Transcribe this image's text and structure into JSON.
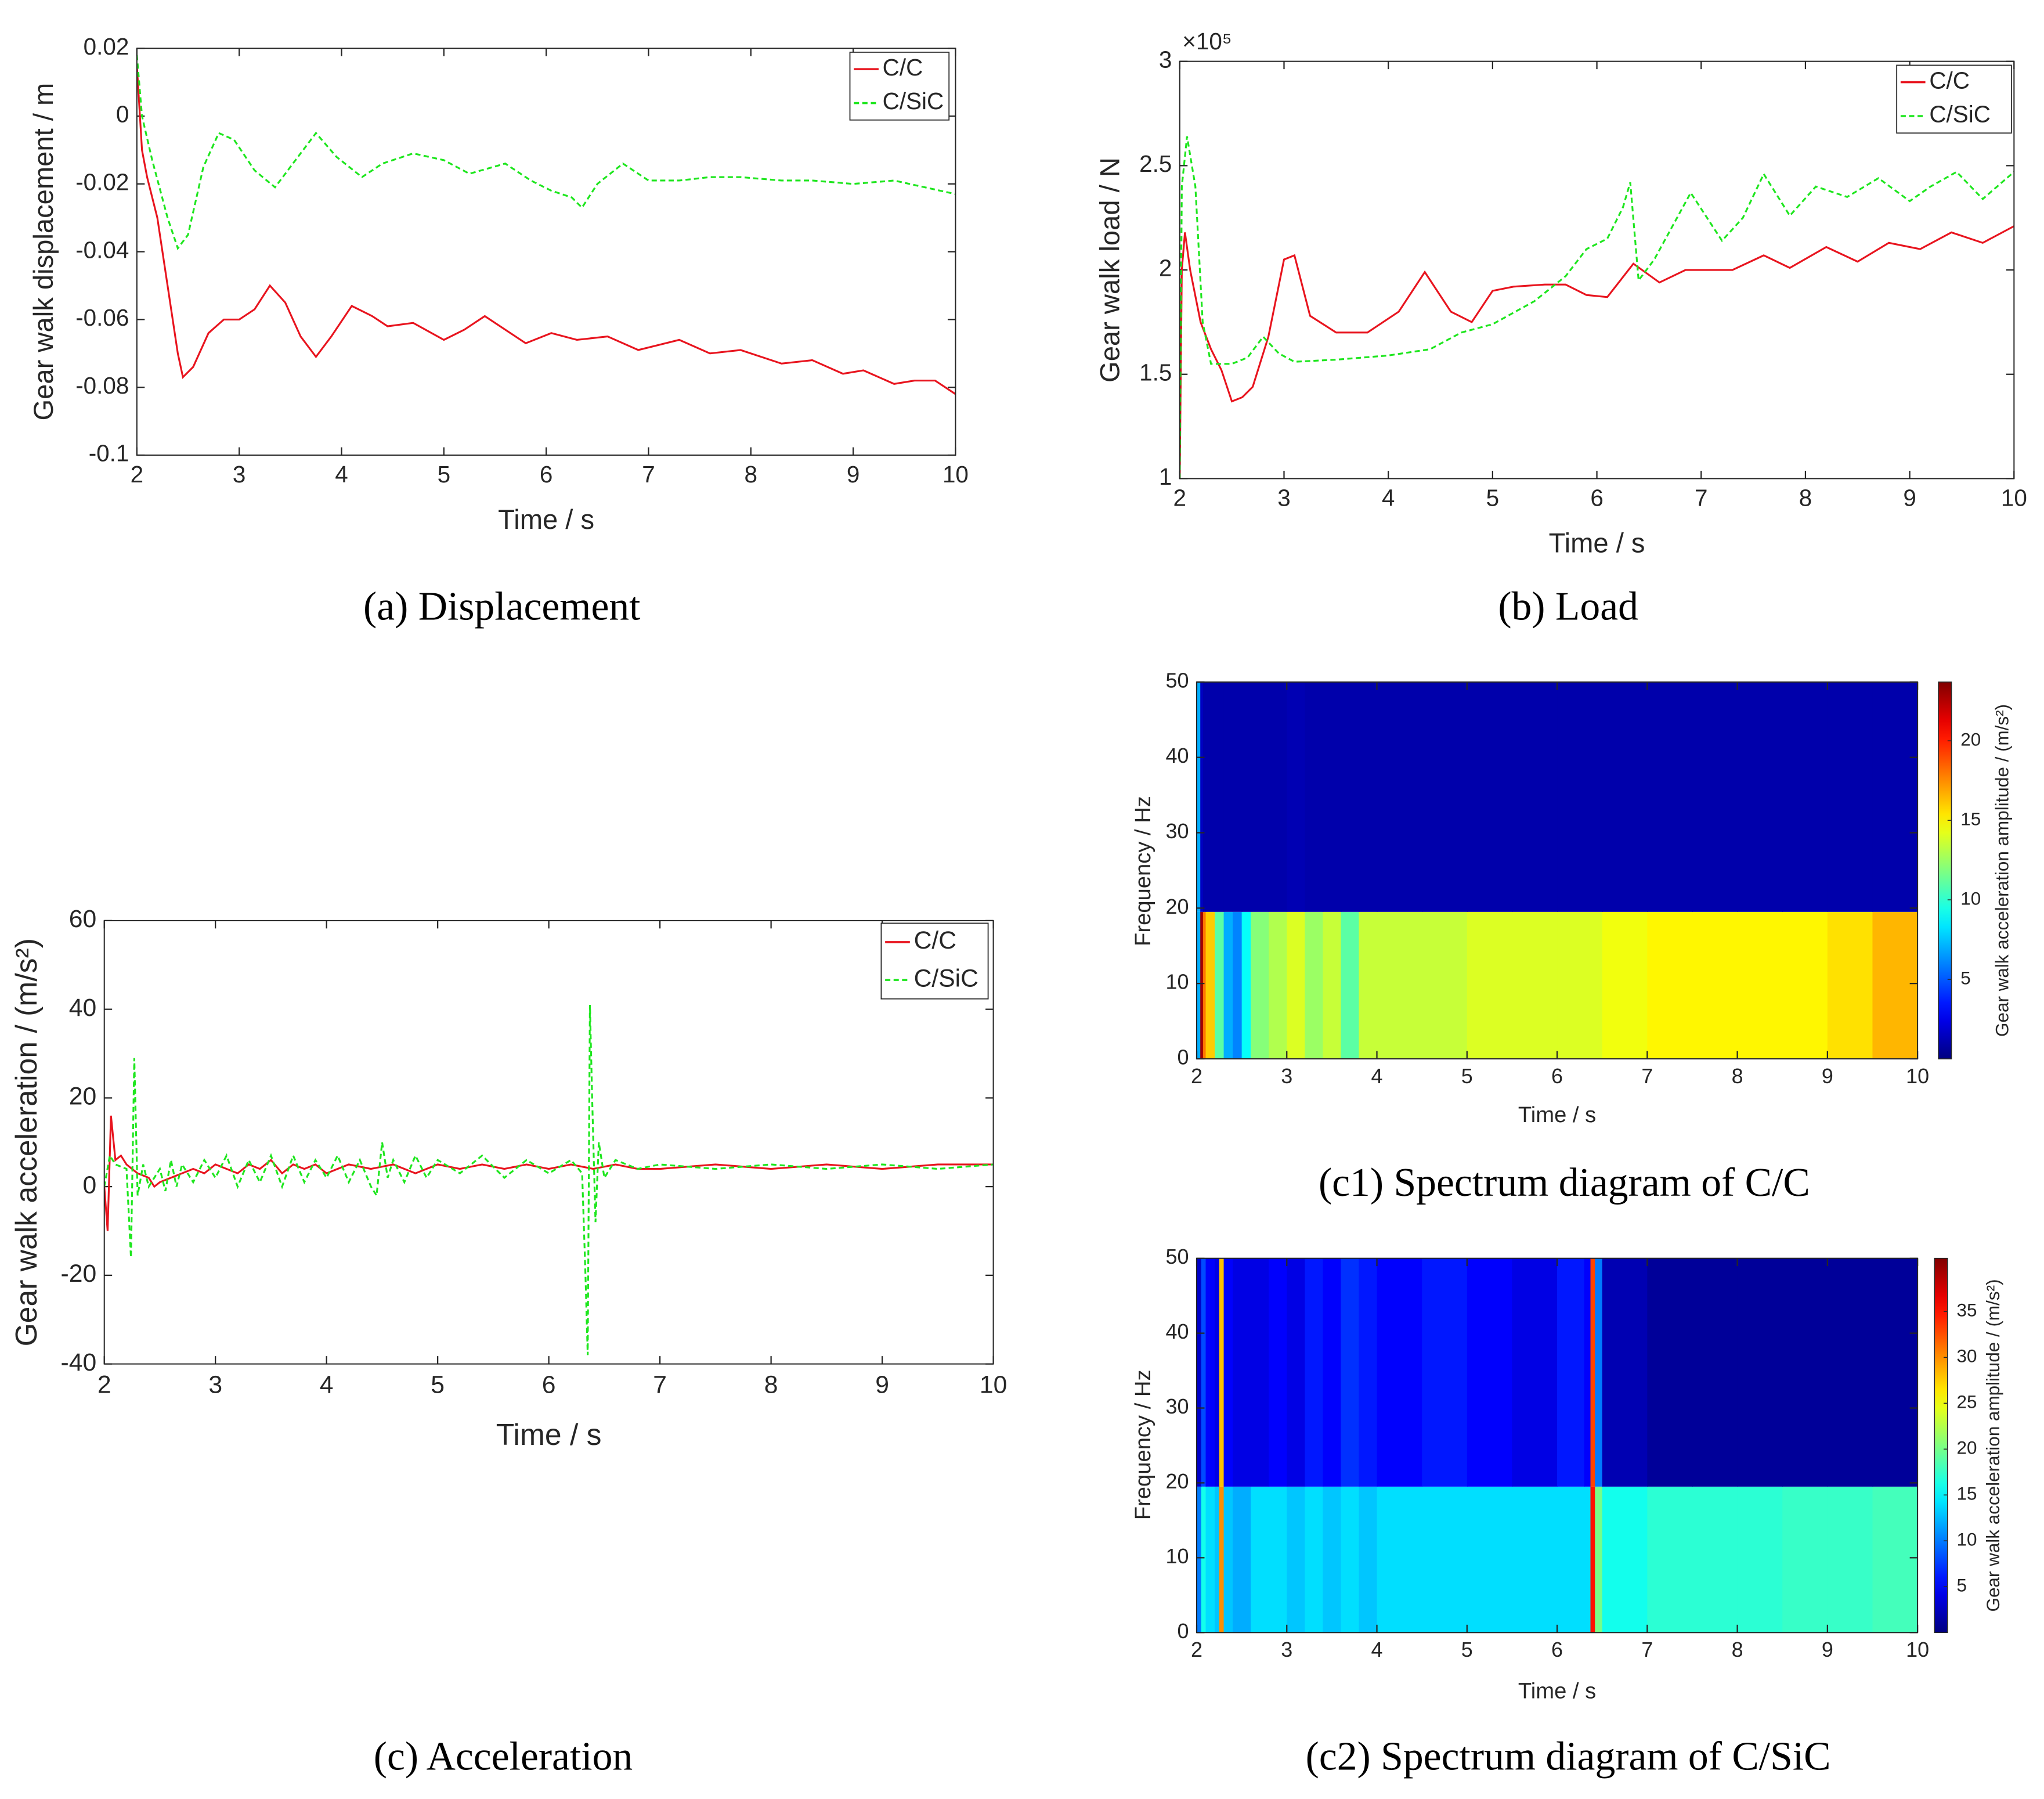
{
  "chart_data": [
    {
      "type": "line",
      "caption": "(a) Displacement",
      "xlabel": "Time / s",
      "ylabel": "Gear walk displacement / m",
      "xlim": [
        2,
        10
      ],
      "ylim": [
        -0.1,
        0.02
      ],
      "xticks": [
        2,
        3,
        4,
        5,
        6,
        7,
        8,
        9,
        10
      ],
      "yticks": [
        0.02,
        0,
        -0.02,
        -0.04,
        -0.06,
        -0.08,
        -0.1
      ],
      "legend": "upper right",
      "series": [
        {
          "name": "C/C",
          "color": "#e8141e",
          "dash": "solid",
          "x": [
            2,
            2.05,
            2.1,
            2.2,
            2.3,
            2.4,
            2.45,
            2.55,
            2.7,
            2.85,
            3,
            3.15,
            3.3,
            3.45,
            3.6,
            3.75,
            3.9,
            4.1,
            4.3,
            4.45,
            4.7,
            5,
            5.2,
            5.4,
            5.6,
            5.8,
            6.05,
            6.3,
            6.6,
            6.9,
            7.3,
            7.6,
            7.9,
            8.3,
            8.6,
            8.9,
            9.1,
            9.4,
            9.6,
            9.8,
            10
          ],
          "values": [
            0.015,
            -0.01,
            -0.018,
            -0.03,
            -0.05,
            -0.07,
            -0.077,
            -0.074,
            -0.064,
            -0.06,
            -0.06,
            -0.057,
            -0.05,
            -0.055,
            -0.065,
            -0.071,
            -0.065,
            -0.056,
            -0.059,
            -0.062,
            -0.061,
            -0.066,
            -0.063,
            -0.059,
            -0.063,
            -0.067,
            -0.064,
            -0.066,
            -0.065,
            -0.069,
            -0.066,
            -0.07,
            -0.069,
            -0.073,
            -0.072,
            -0.076,
            -0.075,
            -0.079,
            -0.078,
            -0.078,
            -0.082
          ]
        },
        {
          "name": "C/SiC",
          "color": "#1ee61e",
          "dash": "dashed",
          "x": [
            2,
            2.05,
            2.15,
            2.3,
            2.4,
            2.5,
            2.65,
            2.8,
            2.95,
            3.15,
            3.35,
            3.55,
            3.75,
            3.95,
            4.2,
            4.4,
            4.7,
            5,
            5.25,
            5.6,
            5.85,
            6.05,
            6.25,
            6.35,
            6.5,
            6.75,
            7,
            7.3,
            7.6,
            7.9,
            8.3,
            8.6,
            9,
            9.4,
            9.7,
            10
          ],
          "values": [
            0.018,
            0,
            -0.013,
            -0.03,
            -0.039,
            -0.035,
            -0.015,
            -0.005,
            -0.007,
            -0.016,
            -0.021,
            -0.013,
            -0.005,
            -0.012,
            -0.018,
            -0.014,
            -0.011,
            -0.013,
            -0.017,
            -0.014,
            -0.019,
            -0.022,
            -0.024,
            -0.027,
            -0.02,
            -0.014,
            -0.019,
            -0.019,
            -0.018,
            -0.018,
            -0.019,
            -0.019,
            -0.02,
            -0.019,
            -0.021,
            -0.023
          ]
        }
      ]
    },
    {
      "type": "line",
      "caption": "(b) Load",
      "xlabel": "Time / s",
      "ylabel": "Gear walk load / N",
      "ymultiplier": "×10⁵",
      "xlim": [
        2,
        10
      ],
      "ylim": [
        100000,
        300000
      ],
      "xticks": [
        2,
        3,
        4,
        5,
        6,
        7,
        8,
        9,
        10
      ],
      "yticks": [
        {
          "value": 100000,
          "label": "1"
        },
        {
          "value": 150000,
          "label": "1.5"
        },
        {
          "value": 200000,
          "label": "2"
        },
        {
          "value": 250000,
          "label": "2.5"
        },
        {
          "value": 300000,
          "label": "3"
        }
      ],
      "legend": "upper right",
      "series": [
        {
          "name": "C/C",
          "color": "#e8141e",
          "dash": "solid",
          "x": [
            2,
            2.02,
            2.05,
            2.1,
            2.2,
            2.3,
            2.4,
            2.5,
            2.6,
            2.7,
            2.85,
            3,
            3.1,
            3.25,
            3.5,
            3.8,
            4.1,
            4.35,
            4.6,
            4.8,
            5,
            5.2,
            5.5,
            5.7,
            5.9,
            6.1,
            6.35,
            6.6,
            6.85,
            7.1,
            7.3,
            7.6,
            7.85,
            8.2,
            8.5,
            8.8,
            9.1,
            9.4,
            9.7,
            10
          ],
          "values": [
            100000,
            200000,
            218000,
            200000,
            175000,
            162000,
            152000,
            137000,
            139000,
            144000,
            168000,
            205000,
            207000,
            178000,
            170000,
            170000,
            180000,
            199000,
            180000,
            175000,
            190000,
            192000,
            193000,
            193000,
            188000,
            187000,
            203000,
            194000,
            200000,
            200000,
            200000,
            207000,
            201000,
            211000,
            204000,
            213000,
            210000,
            218000,
            213000,
            221000
          ]
        },
        {
          "name": "C/SiC",
          "color": "#1ee61e",
          "dash": "dashed",
          "x": [
            2,
            2.02,
            2.07,
            2.15,
            2.22,
            2.3,
            2.5,
            2.65,
            2.8,
            2.95,
            3.1,
            3.5,
            4,
            4.4,
            4.7,
            5,
            5.4,
            5.7,
            5.9,
            6.1,
            6.25,
            6.32,
            6.4,
            6.55,
            6.9,
            7.2,
            7.4,
            7.6,
            7.85,
            8.1,
            8.4,
            8.7,
            9,
            9.2,
            9.45,
            9.7,
            10
          ],
          "values": [
            100000,
            240000,
            264000,
            240000,
            175000,
            155000,
            155000,
            158000,
            168000,
            160000,
            156000,
            157000,
            159000,
            162000,
            170000,
            174000,
            185000,
            197000,
            210000,
            215000,
            230000,
            242000,
            195000,
            205000,
            237000,
            214000,
            225000,
            246000,
            226000,
            240000,
            235000,
            244000,
            233000,
            240000,
            247000,
            234000,
            247000
          ]
        }
      ]
    },
    {
      "type": "line",
      "caption": "(c) Acceleration",
      "xlabel": "Time / s",
      "ylabel": "Gear walk acceleration / (m/s²)",
      "xlim": [
        2,
        10
      ],
      "ylim": [
        -40,
        60
      ],
      "xticks": [
        2,
        3,
        4,
        5,
        6,
        7,
        8,
        9,
        10
      ],
      "yticks": [
        60,
        40,
        20,
        0,
        -20,
        -40
      ],
      "legend": "upper right",
      "series": [
        {
          "name": "C/C",
          "color": "#e8141e",
          "dash": "solid",
          "x": [
            2,
            2.03,
            2.06,
            2.1,
            2.15,
            2.2,
            2.3,
            2.4,
            2.45,
            2.5,
            2.6,
            2.7,
            2.8,
            2.9,
            3,
            3.1,
            3.2,
            3.3,
            3.4,
            3.5,
            3.6,
            3.7,
            3.8,
            3.9,
            4,
            4.2,
            4.4,
            4.6,
            4.8,
            5,
            5.2,
            5.4,
            5.6,
            5.8,
            6,
            6.2,
            6.4,
            6.6,
            6.8,
            7,
            7.5,
            8,
            8.5,
            9,
            9.5,
            10
          ],
          "values": [
            0,
            -10,
            16,
            6,
            7,
            5,
            3,
            2,
            0,
            1,
            2,
            3,
            4,
            3,
            5,
            4,
            3,
            5,
            4,
            6,
            3,
            5,
            4,
            5,
            3,
            5,
            4,
            5,
            3,
            5,
            4,
            5,
            4,
            5,
            4,
            5,
            4,
            5,
            4,
            4,
            5,
            4,
            5,
            4,
            5,
            5
          ]
        },
        {
          "name": "C/SiC",
          "color": "#1ee61e",
          "dash": "dashed",
          "x": [
            2,
            2.05,
            2.1,
            2.2,
            2.24,
            2.27,
            2.3,
            2.35,
            2.4,
            2.5,
            2.55,
            2.6,
            2.65,
            2.7,
            2.8,
            2.9,
            3,
            3.1,
            3.2,
            3.3,
            3.4,
            3.5,
            3.6,
            3.7,
            3.8,
            3.9,
            4,
            4.1,
            4.2,
            4.3,
            4.4,
            4.45,
            4.5,
            4.55,
            4.6,
            4.7,
            4.8,
            4.9,
            5,
            5.2,
            5.4,
            5.6,
            5.8,
            6,
            6.2,
            6.3,
            6.33,
            6.35,
            6.37,
            6.39,
            6.42,
            6.45,
            6.5,
            6.6,
            6.8,
            7,
            7.5,
            8,
            8.5,
            9,
            9.5,
            10
          ],
          "values": [
            0,
            7,
            5,
            4,
            -16,
            29,
            -2,
            5,
            0,
            4,
            -1,
            6,
            0,
            5,
            1,
            6,
            2,
            7,
            0,
            6,
            1,
            7,
            0,
            7,
            1,
            6,
            2,
            7,
            1,
            6,
            0,
            -2,
            10,
            2,
            6,
            1,
            7,
            2,
            6,
            3,
            7,
            2,
            6,
            3,
            6,
            3,
            -20,
            -38,
            41,
            20,
            -8,
            10,
            2,
            6,
            4,
            5,
            4,
            5,
            4,
            5,
            4,
            5
          ]
        }
      ]
    },
    {
      "type": "heatmap",
      "caption": "(c1) Spectrum diagram of C/C",
      "xlabel": "Time / s",
      "ylabel": "Frequency / Hz",
      "colorbar_label": "Gear walk acceleration amplitude / (m/s²)",
      "colormap": "jet",
      "xlim": [
        2,
        10
      ],
      "ylim": [
        0,
        50
      ],
      "xticks": [
        2,
        3,
        4,
        5,
        6,
        7,
        8,
        9,
        10
      ],
      "yticks": [
        0,
        10,
        20,
        30,
        40,
        50
      ],
      "zlim": [
        0,
        23.7
      ],
      "zticks": [
        5,
        10,
        15,
        20
      ],
      "xbins": [
        2,
        2.04,
        2.07,
        2.1,
        2.2,
        2.3,
        2.4,
        2.5,
        2.6,
        2.8,
        3,
        3.2,
        3.4,
        3.6,
        3.8,
        4,
        4.5,
        5,
        5.5,
        6,
        6.5,
        7,
        7.5,
        8,
        8.5,
        9,
        9.5,
        10
      ],
      "ybins": [
        0,
        19.5,
        50
      ],
      "z": [
        [
          7,
          23,
          18,
          16,
          11,
          7,
          6,
          9,
          12,
          13,
          14,
          12.5,
          13.5,
          11,
          13.5,
          13.5,
          13.5,
          14,
          14,
          14,
          14.5,
          15,
          15,
          15,
          15,
          15.5,
          16.5
        ],
        [
          7,
          1.5,
          1,
          1,
          1,
          1,
          1,
          1,
          1,
          1,
          1.2,
          1,
          1,
          1,
          1,
          1,
          1,
          1,
          1,
          1,
          1,
          1,
          1,
          1,
          1,
          1,
          1
        ]
      ]
    },
    {
      "type": "heatmap",
      "caption": "(c2) Spectrum diagram of C/SiC",
      "xlabel": "Time / s",
      "ylabel": "Frequency / Hz",
      "colorbar_label": "Gear walk acceleration amplitude / (m/s²)",
      "colormap": "jet",
      "xlim": [
        2,
        10
      ],
      "ylim": [
        0,
        50
      ],
      "xticks": [
        2,
        3,
        4,
        5,
        6,
        7,
        8,
        9,
        10
      ],
      "yticks": [
        0,
        10,
        20,
        30,
        40,
        50
      ],
      "zlim": [
        0,
        40.8
      ],
      "zticks": [
        5,
        10,
        15,
        20,
        25,
        30,
        35
      ],
      "xbins": [
        2,
        2.05,
        2.1,
        2.2,
        2.25,
        2.3,
        2.4,
        2.6,
        2.8,
        3,
        3.2,
        3.4,
        3.6,
        3.8,
        4,
        4.5,
        5,
        5.5,
        6,
        6.3,
        6.37,
        6.42,
        6.5,
        7,
        7.5,
        8,
        8.5,
        9,
        9.5,
        10
      ],
      "ybins": [
        0,
        19.5,
        50
      ],
      "z": [
        [
          10,
          16,
          14,
          13,
          30,
          13,
          12,
          14,
          14,
          13,
          14,
          13,
          14,
          13,
          14,
          14,
          14,
          14,
          14,
          14,
          35,
          20,
          16,
          17,
          17,
          17,
          17.5,
          17.5,
          18
        ],
        [
          3,
          8,
          5,
          4,
          28,
          5,
          4,
          4,
          5,
          4,
          6,
          5,
          7,
          6,
          5,
          6,
          5,
          4,
          6,
          5,
          33,
          10,
          2,
          1,
          1,
          1,
          1,
          1,
          1
        ]
      ]
    }
  ]
}
